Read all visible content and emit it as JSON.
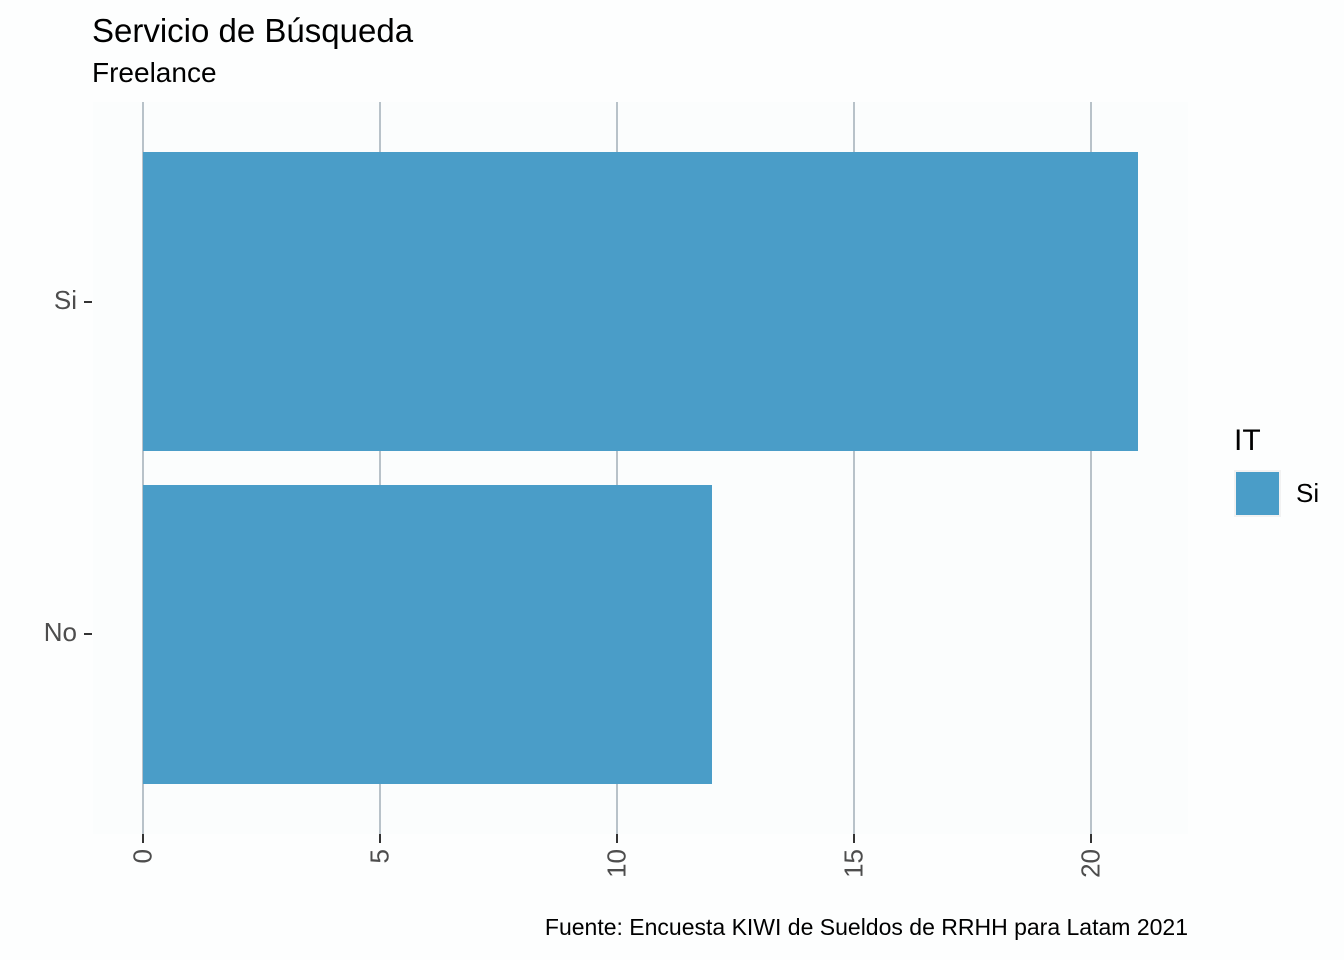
{
  "title": "Servicio de Búsqueda",
  "subtitle": "Freelance",
  "caption": "Fuente: Encuesta KIWI de Sueldos de RRHH para Latam 2021",
  "legend": {
    "title": "IT",
    "items": [
      {
        "label": "Si",
        "color": "#4A9DC8"
      }
    ]
  },
  "axes": {
    "x_tick_labels": [
      "0",
      "5",
      "10",
      "15",
      "20"
    ],
    "y_category_labels": [
      "Si",
      "No"
    ]
  },
  "colors": {
    "bar": "#4A9DC8",
    "gridline": "#B8C2C9",
    "tick": "#333333",
    "axis_text": "#4D4D4D",
    "panel_background": "#FBFDFD"
  },
  "chart_data": {
    "type": "bar",
    "orientation": "horizontal",
    "title": "Servicio de Búsqueda",
    "subtitle": "Freelance",
    "caption": "Fuente: Encuesta KIWI de Sueldos de RRHH para Latam 2021",
    "categories": [
      "Si",
      "No"
    ],
    "values": [
      21,
      12
    ],
    "series": [
      {
        "name": "Si",
        "values": [
          21,
          12
        ]
      }
    ],
    "legend_title": "IT",
    "legend_position": "right",
    "xlabel": "",
    "ylabel": "",
    "x_ticks": [
      0,
      5,
      10,
      15,
      20
    ],
    "xlim": [
      -1.05,
      22.05
    ],
    "grid": "vertical-major",
    "bar_color": "#4A9DC8",
    "bar_width_fraction": 0.9,
    "category_expansion": 0.6
  }
}
